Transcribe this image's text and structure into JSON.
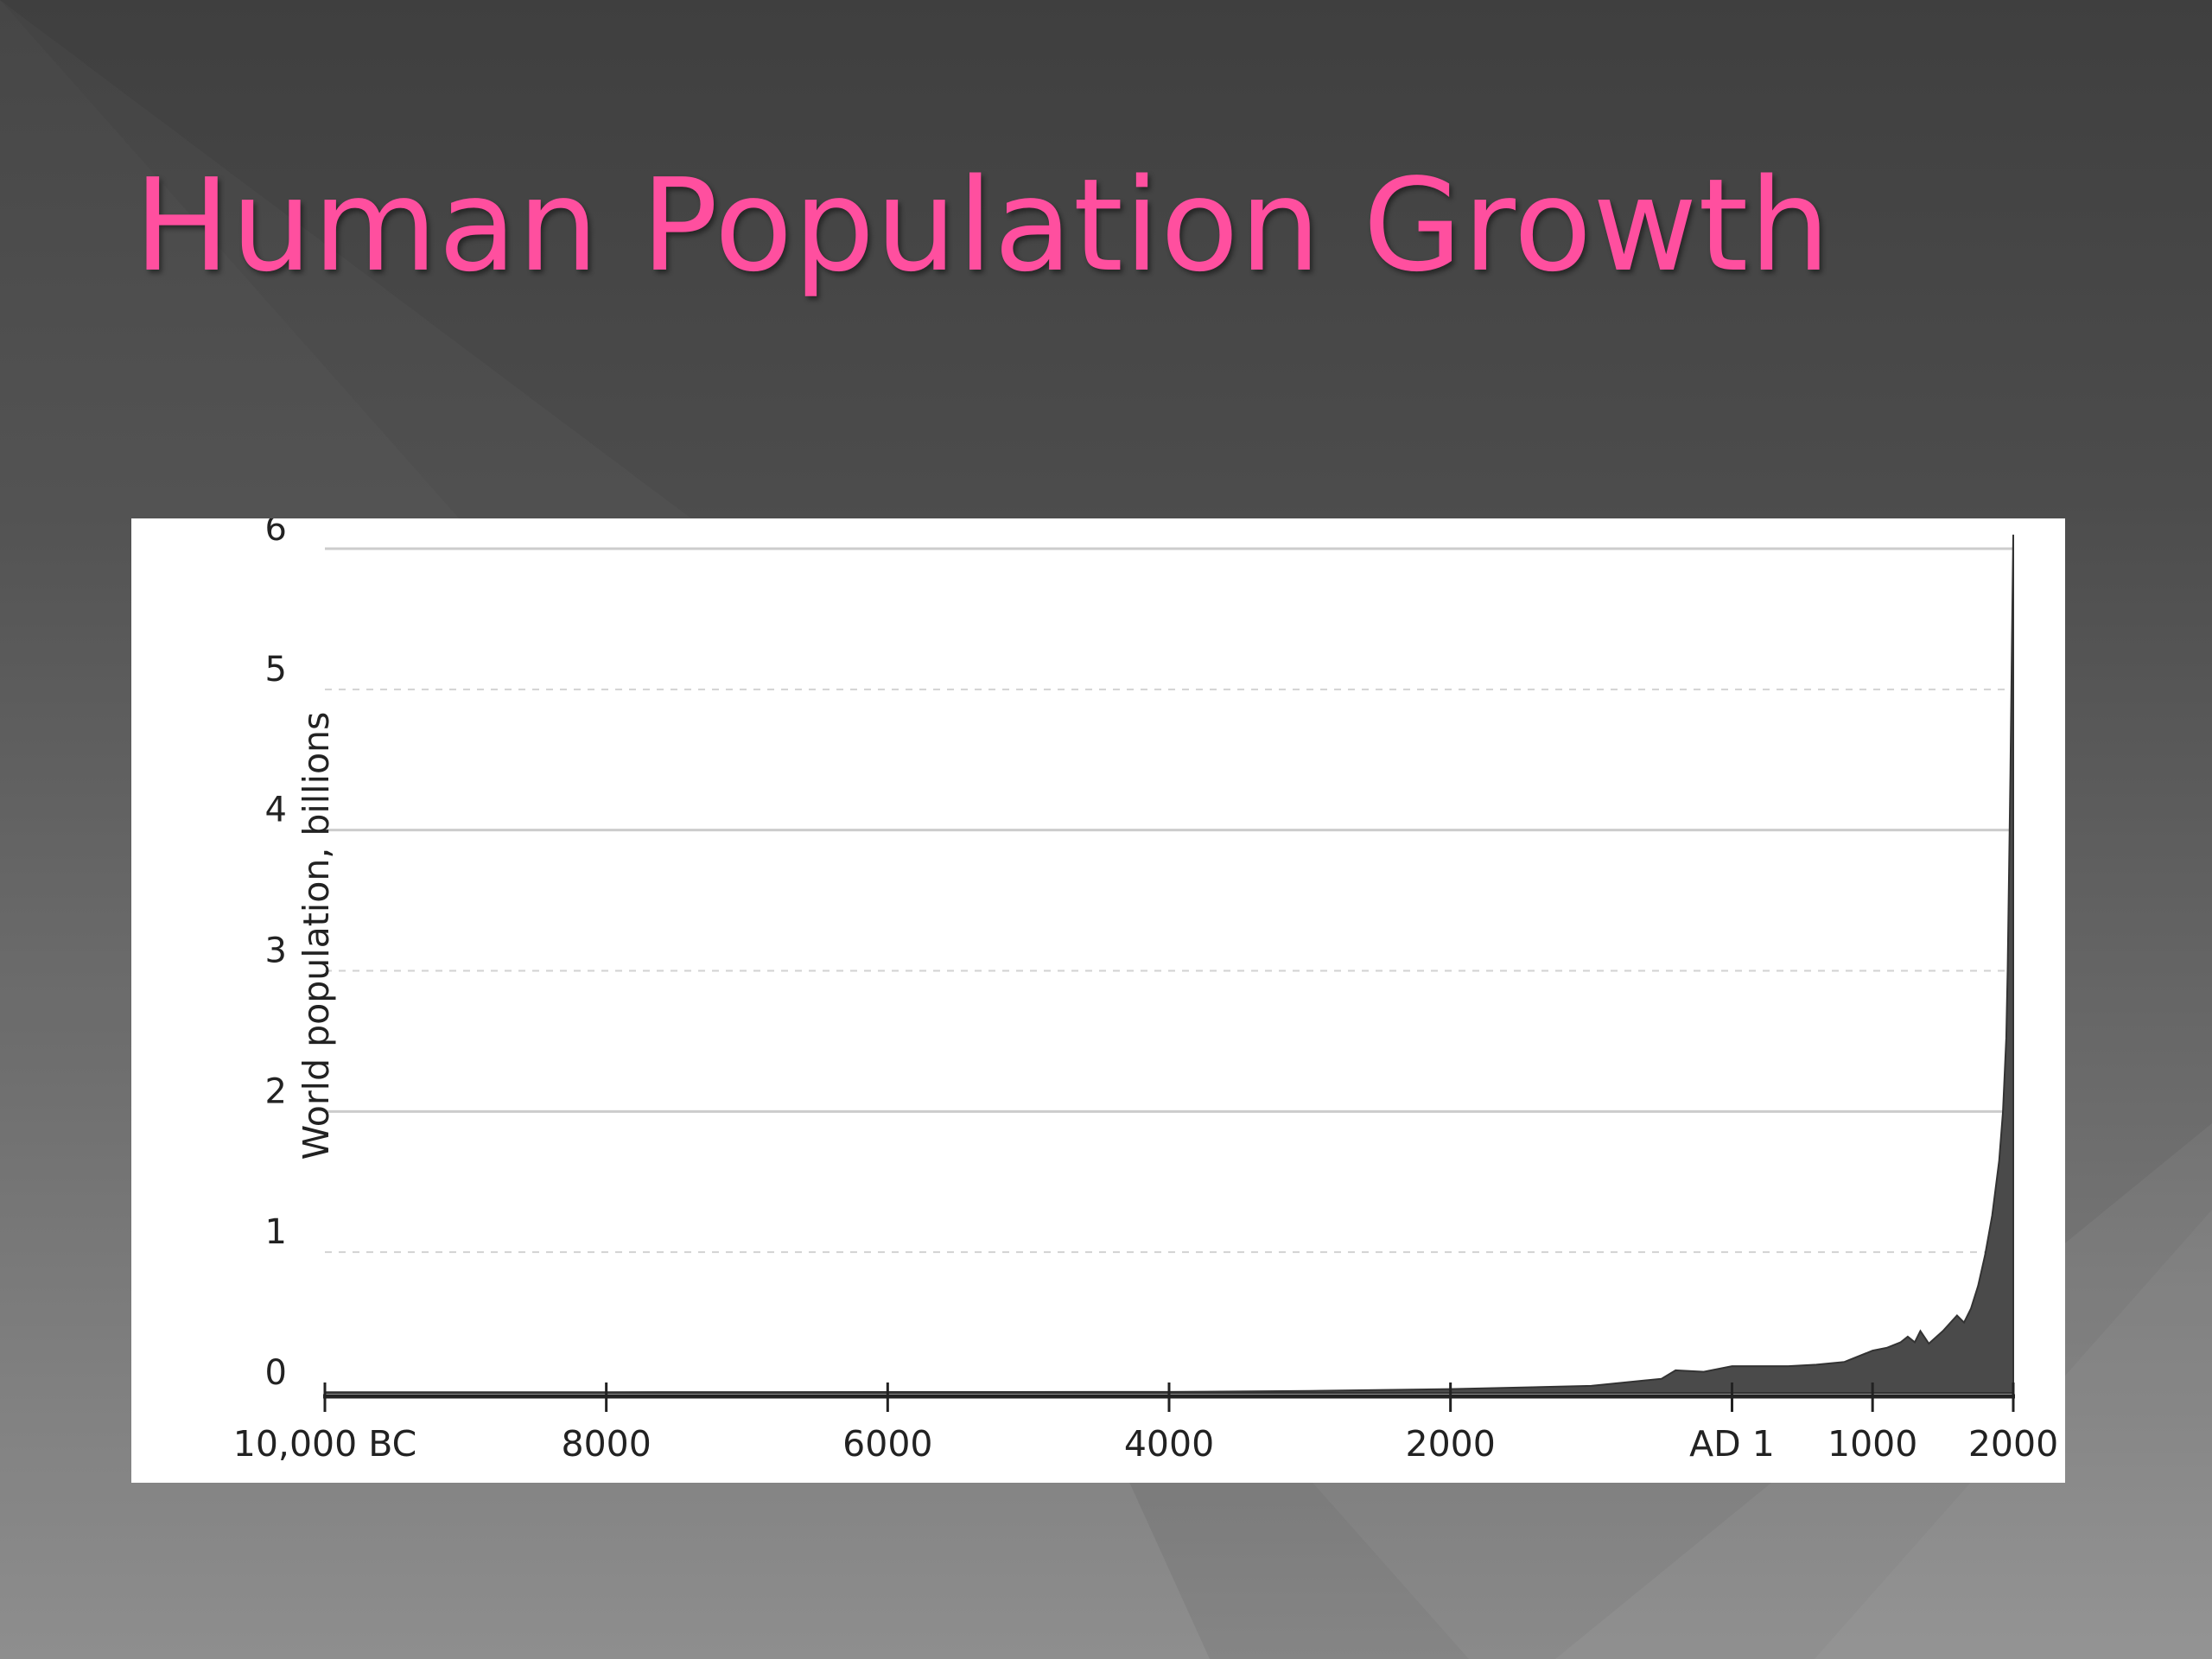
{
  "slide": {
    "title": "Human Population Growth",
    "title_color": "#ff4f9f"
  },
  "chart_data": {
    "type": "area",
    "title": "",
    "xlabel": "",
    "ylabel": "World population, billions",
    "x_unit": "year (negative = BC)",
    "xlim": [
      -10000,
      2000
    ],
    "ylim": [
      0,
      6
    ],
    "grid": true,
    "legend": "none",
    "fill_color": "#4a4a4a",
    "y_ticks": [
      0,
      1,
      2,
      3,
      4,
      5,
      6
    ],
    "x_ticks": [
      {
        "value": -10000,
        "label": "10,000 BC"
      },
      {
        "value": -8000,
        "label": "8000"
      },
      {
        "value": -6000,
        "label": "6000"
      },
      {
        "value": -4000,
        "label": "4000"
      },
      {
        "value": -2000,
        "label": "2000"
      },
      {
        "value": 1,
        "label": "AD 1"
      },
      {
        "value": 1000,
        "label": "1000"
      },
      {
        "value": 2000,
        "label": "2000"
      }
    ],
    "series": [
      {
        "x": [
          -10000,
          -8000,
          -6000,
          -4000,
          -3000,
          -2000,
          -1000,
          -500,
          -400,
          -200,
          1,
          200,
          400,
          600,
          800,
          1000,
          1100,
          1200,
          1250,
          1300,
          1340,
          1400,
          1500,
          1600,
          1650,
          1700,
          1750,
          1800,
          1850,
          1900,
          1927,
          1950,
          1960,
          1970,
          1980,
          1990,
          2000
        ],
        "y": [
          0.004,
          0.005,
          0.006,
          0.007,
          0.014,
          0.027,
          0.05,
          0.1,
          0.16,
          0.15,
          0.19,
          0.19,
          0.19,
          0.2,
          0.22,
          0.3,
          0.32,
          0.36,
          0.4,
          0.36,
          0.44,
          0.35,
          0.44,
          0.55,
          0.5,
          0.6,
          0.76,
          0.98,
          1.26,
          1.65,
          2.0,
          2.52,
          3.0,
          3.7,
          4.4,
          5.3,
          6.1
        ]
      }
    ]
  }
}
